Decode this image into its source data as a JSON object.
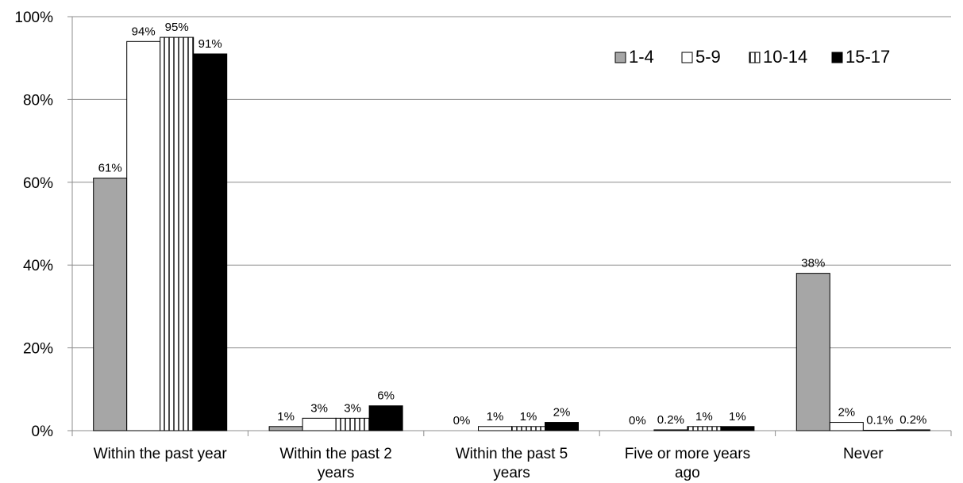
{
  "chart_data": {
    "type": "bar",
    "categories": [
      [
        "Within the past year"
      ],
      [
        "Within the past 2",
        "years"
      ],
      [
        "Within the past 5",
        "years"
      ],
      [
        "Five or more years",
        "ago"
      ],
      [
        "Never"
      ]
    ],
    "series": [
      {
        "name": "1-4",
        "pattern": "solid-gray",
        "color": "#a6a6a6",
        "values": [
          61,
          1,
          0,
          0,
          38
        ],
        "labels": [
          "61%",
          "1%",
          "0%",
          "0%",
          "38%"
        ]
      },
      {
        "name": "5-9",
        "pattern": "white",
        "color": "#ffffff",
        "values": [
          94,
          3,
          1,
          0.2,
          2
        ],
        "labels": [
          "94%",
          "3%",
          "1%",
          "0.2%",
          "2%"
        ]
      },
      {
        "name": "10-14",
        "pattern": "vertical-stripes",
        "color": "#ffffff",
        "values": [
          95,
          3,
          1,
          1,
          0.1
        ],
        "labels": [
          "95%",
          "3%",
          "1%",
          "1%",
          "0.1%"
        ]
      },
      {
        "name": "15-17",
        "pattern": "solid-black",
        "color": "#000000",
        "values": [
          91,
          6,
          2,
          1,
          0.2
        ],
        "labels": [
          "91%",
          "6%",
          "2%",
          "1%",
          "0.2%"
        ]
      }
    ],
    "y_ticks": [
      "0%",
      "20%",
      "40%",
      "60%",
      "80%",
      "100%"
    ],
    "ylim": [
      0,
      100
    ],
    "grid": true,
    "legend_position": "top-right",
    "title": "",
    "xlabel": "",
    "ylabel": ""
  }
}
